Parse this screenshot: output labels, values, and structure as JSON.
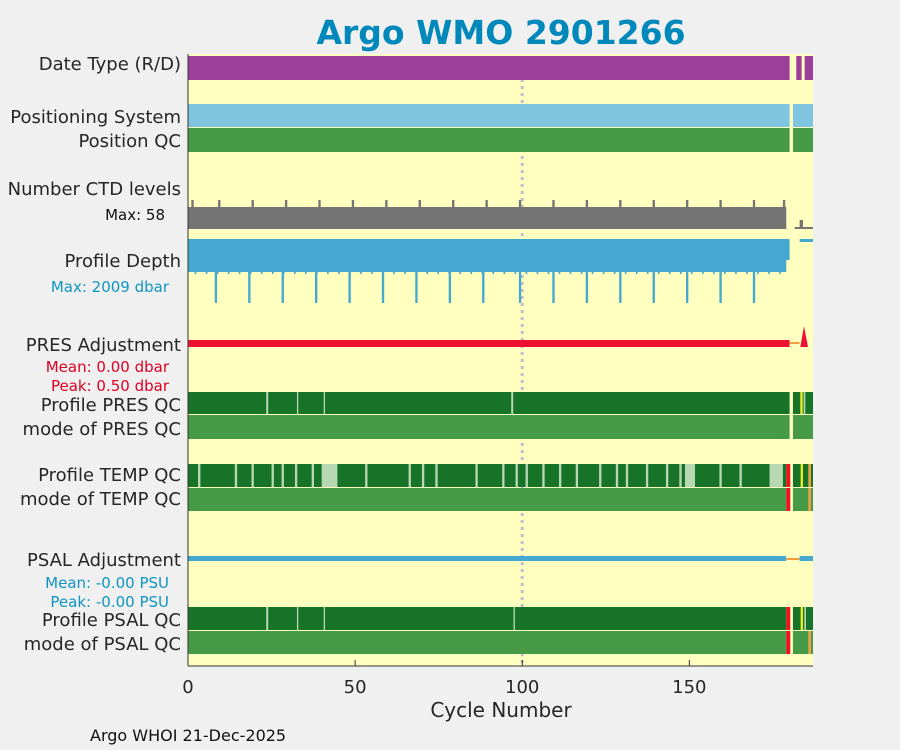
{
  "chart_data": {
    "type": "bar",
    "title": "Argo WMO 2901266",
    "xlabel": "Cycle Number",
    "xlim": [
      0,
      187
    ],
    "xticks": [
      0,
      50,
      100,
      150
    ],
    "x_tick_labels": [
      "0",
      "50",
      "100",
      "150"
    ],
    "reference_line_cycle": 100,
    "footer": "Argo WHOI 21-Dec-2025",
    "row_labels": {
      "date_type": "Date Type (R/D)",
      "positioning_system": "Positioning System",
      "position_qc": "Position QC",
      "number_ctd_levels": "Number CTD levels",
      "profile_depth": "Profile Depth",
      "pres_adjustment": "PRES Adjustment",
      "profile_pres_qc": "Profile PRES QC",
      "mode_pres_qc": "mode of PRES QC",
      "profile_temp_qc": "Profile TEMP QC",
      "mode_temp_qc": "mode of TEMP QC",
      "psal_adjustment": "PSAL Adjustment",
      "profile_psal_qc": "Profile PSAL QC",
      "mode_psal_qc": "mode of PSAL QC"
    },
    "annotations": {
      "ctd_max": "Max: 58",
      "depth_max": "Max: 2009 dbar",
      "pres_mean": "Mean: 0.00 dbar",
      "pres_peak": "Peak: 0.50 dbar",
      "psal_mean": "Mean: -0.00 PSU",
      "psal_peak": "Peak: -0.00 PSU"
    },
    "colors": {
      "background": "#f0f0f0",
      "plot_bg": "#ffffc0",
      "title": "#0088bb",
      "date_type": "#9b3f9b",
      "positioning": "#7fc5e0",
      "qc_good": "#479a46",
      "qc_profile_a": "#167328",
      "qc_light": "#b8d8b2",
      "ctd": "#747474",
      "depth": "#45a8d0",
      "pres_adj": "#ee1133",
      "psal_adj": "#45a8d0",
      "red": "#ee1122",
      "yellow": "#eeee22",
      "orange": "#f0a040",
      "grid": "#c0c0cc",
      "depth_text": "#0f95c0",
      "pres_text": "#dd0022"
    },
    "segments": {
      "date_type": [
        [
          0,
          180
        ],
        [
          182,
          183.6
        ],
        [
          184.5,
          187
        ]
      ],
      "positioning": [
        [
          0,
          180
        ],
        [
          181,
          187
        ]
      ],
      "position_qc": [
        [
          0,
          180
        ],
        [
          181,
          187
        ]
      ],
      "ctd_levels": [
        [
          0,
          179
        ],
        [
          183,
          184
        ]
      ],
      "ctd_spike_cycles": [
        1,
        9,
        19,
        29,
        39,
        49,
        59,
        69,
        79,
        89,
        99,
        109,
        119,
        129,
        139,
        149,
        159,
        169,
        178
      ],
      "profile_depth": [
        [
          0,
          180
        ],
        [
          183,
          187
        ]
      ],
      "depth_spike_cycles": [
        8,
        18,
        28,
        38,
        48,
        58,
        68,
        78,
        88,
        99,
        109,
        119,
        129,
        139,
        149,
        159,
        169
      ],
      "pres_qc_white_gaps": [
        [
          23.4,
          24
        ],
        [
          32.6,
          33
        ],
        [
          40.6,
          41
        ],
        [
          96.7,
          97.3
        ]
      ],
      "temp_qc_light_cycles": [
        3,
        14,
        19,
        25,
        28,
        32,
        37,
        40,
        44,
        53,
        66,
        70,
        74,
        86,
        94,
        98,
        101,
        106,
        111,
        116,
        123,
        128,
        131,
        137,
        143,
        147,
        151,
        159,
        165
      ],
      "temp_qc_light_wide": [
        [
          40.5,
          44.5
        ],
        [
          148.7,
          151.5
        ],
        [
          174,
          178
        ]
      ],
      "psal_qc_white_gaps": [
        [
          23.4,
          24
        ],
        [
          32.6,
          33
        ],
        [
          40.6,
          41
        ],
        [
          97.4,
          97.8
        ]
      ]
    }
  }
}
